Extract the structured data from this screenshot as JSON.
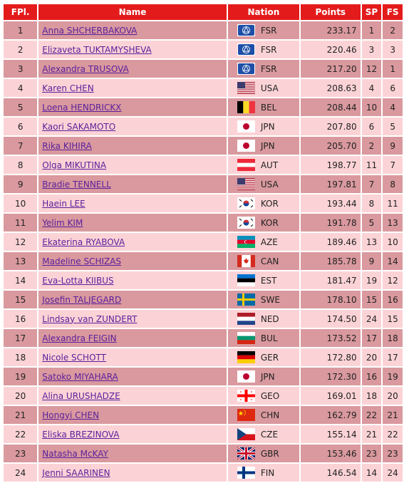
{
  "headers": {
    "fpl": "FPl.",
    "name": "Name",
    "nation": "Nation",
    "points": "Points",
    "sp": "SP",
    "fs": "FS"
  },
  "rows": [
    {
      "fpl": "1",
      "name": "Anna SHCHERBAKOVA",
      "nation": "FSR",
      "points": "233.17",
      "sp": "1",
      "fs": "2",
      "flag": "fsr"
    },
    {
      "fpl": "2",
      "name": "Elizaveta TUKTAMYSHEVA",
      "nation": "FSR",
      "points": "220.46",
      "sp": "3",
      "fs": "3",
      "flag": "fsr"
    },
    {
      "fpl": "3",
      "name": "Alexandra TRUSOVA",
      "nation": "FSR",
      "points": "217.20",
      "sp": "12",
      "fs": "1",
      "flag": "fsr"
    },
    {
      "fpl": "4",
      "name": "Karen CHEN",
      "nation": "USA",
      "points": "208.63",
      "sp": "4",
      "fs": "6",
      "flag": "usa"
    },
    {
      "fpl": "5",
      "name": "Loena HENDRICKX",
      "nation": "BEL",
      "points": "208.44",
      "sp": "10",
      "fs": "4",
      "flag": "bel"
    },
    {
      "fpl": "6",
      "name": "Kaori SAKAMOTO",
      "nation": "JPN",
      "points": "207.80",
      "sp": "6",
      "fs": "5",
      "flag": "jpn"
    },
    {
      "fpl": "7",
      "name": "Rika KIHIRA",
      "nation": "JPN",
      "points": "205.70",
      "sp": "2",
      "fs": "9",
      "flag": "jpn"
    },
    {
      "fpl": "8",
      "name": "Olga MIKUTINA",
      "nation": "AUT",
      "points": "198.77",
      "sp": "11",
      "fs": "7",
      "flag": "aut"
    },
    {
      "fpl": "9",
      "name": "Bradie TENNELL",
      "nation": "USA",
      "points": "197.81",
      "sp": "7",
      "fs": "8",
      "flag": "usa"
    },
    {
      "fpl": "10",
      "name": "Haein LEE",
      "nation": "KOR",
      "points": "193.44",
      "sp": "8",
      "fs": "11",
      "flag": "kor"
    },
    {
      "fpl": "11",
      "name": "Yelim KIM",
      "nation": "KOR",
      "points": "191.78",
      "sp": "5",
      "fs": "13",
      "flag": "kor"
    },
    {
      "fpl": "12",
      "name": "Ekaterina RYABOVA",
      "nation": "AZE",
      "points": "189.46",
      "sp": "13",
      "fs": "10",
      "flag": "aze"
    },
    {
      "fpl": "13",
      "name": "Madeline SCHIZAS",
      "nation": "CAN",
      "points": "185.78",
      "sp": "9",
      "fs": "14",
      "flag": "can"
    },
    {
      "fpl": "14",
      "name": "Eva-Lotta KIIBUS",
      "nation": "EST",
      "points": "181.47",
      "sp": "19",
      "fs": "12",
      "flag": "est"
    },
    {
      "fpl": "15",
      "name": "Josefin TALJEGARD",
      "nation": "SWE",
      "points": "178.10",
      "sp": "15",
      "fs": "16",
      "flag": "swe"
    },
    {
      "fpl": "16",
      "name": "Lindsay van ZUNDERT",
      "nation": "NED",
      "points": "174.50",
      "sp": "24",
      "fs": "15",
      "flag": "ned"
    },
    {
      "fpl": "17",
      "name": "Alexandra FEIGIN",
      "nation": "BUL",
      "points": "173.52",
      "sp": "17",
      "fs": "18",
      "flag": "bul"
    },
    {
      "fpl": "18",
      "name": "Nicole SCHOTT",
      "nation": "GER",
      "points": "172.80",
      "sp": "20",
      "fs": "17",
      "flag": "ger"
    },
    {
      "fpl": "19",
      "name": "Satoko MIYAHARA",
      "nation": "JPN",
      "points": "172.30",
      "sp": "16",
      "fs": "19",
      "flag": "jpn"
    },
    {
      "fpl": "20",
      "name": "Alina URUSHADZE",
      "nation": "GEO",
      "points": "169.01",
      "sp": "18",
      "fs": "20",
      "flag": "geo"
    },
    {
      "fpl": "21",
      "name": "Hongyi CHEN",
      "nation": "CHN",
      "points": "162.79",
      "sp": "22",
      "fs": "21",
      "flag": "chn"
    },
    {
      "fpl": "22",
      "name": "Eliska BREZINOVA",
      "nation": "CZE",
      "points": "155.14",
      "sp": "21",
      "fs": "22",
      "flag": "cze"
    },
    {
      "fpl": "23",
      "name": "Natasha McKAY",
      "nation": "GBR",
      "points": "153.46",
      "sp": "23",
      "fs": "23",
      "flag": "gbr"
    },
    {
      "fpl": "24",
      "name": "Jenni SAARINEN",
      "nation": "FIN",
      "points": "146.54",
      "sp": "14",
      "fs": "24",
      "flag": "fin"
    }
  ]
}
